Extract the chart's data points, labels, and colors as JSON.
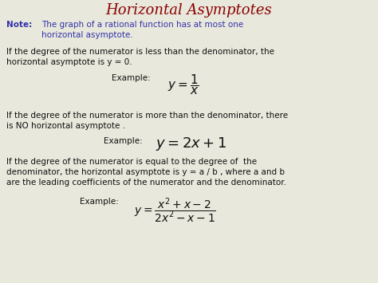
{
  "title": "Horizontal Asymptotes",
  "title_color": "#8B0000",
  "title_fontsize": 13,
  "bg_color": "#E8E8DC",
  "note_color": "#3333AA",
  "body_color": "#111111",
  "note_label": "Note:",
  "note_line1": "The graph of a rational function has at most one",
  "note_line2": "horizontal asymptote.",
  "para1_line1": "If the degree of the numerator is less than the denominator, the",
  "para1_line2": "horizontal asymptote is y = 0.",
  "para1_example": "Example:",
  "para1_formula": "$y = \\dfrac{1}{x}$",
  "para2_line1": "If the degree of the numerator is more than the denominator, there",
  "para2_line2": "is NO horizontal asymptote .",
  "para2_example": "Example:",
  "para2_formula": "$y = 2x+1$",
  "para3_line1": "If the degree of the numerator is equal to the degree of  the",
  "para3_line2": "denominator, the horizontal asymptote is y = a / b , where a and b",
  "para3_line3": "are the leading coefficients of the numerator and the denominator.",
  "para3_example": "Example:",
  "para3_formula": "$y = \\dfrac{x^2+x-2}{2x^2-x-1}$",
  "fs_body": 7.5,
  "fs_note_label": 7.5,
  "fs_example": 7.5,
  "fs_formula1": 11,
  "fs_formula2": 13,
  "fs_formula3": 10
}
